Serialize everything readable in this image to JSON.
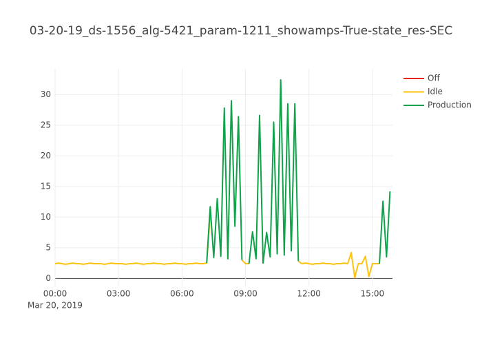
{
  "chart_data": {
    "type": "line",
    "title": "03-20-19_ds-1556_alg-5421_param-1211_showamps-True-state_res-SEC",
    "x": [
      "2019-03-20 00:00",
      "2019-03-20 00:10",
      "2019-03-20 00:20",
      "2019-03-20 00:30",
      "2019-03-20 00:40",
      "2019-03-20 00:50",
      "2019-03-20 01:00",
      "2019-03-20 01:10",
      "2019-03-20 01:20",
      "2019-03-20 01:30",
      "2019-03-20 01:40",
      "2019-03-20 01:50",
      "2019-03-20 02:00",
      "2019-03-20 02:10",
      "2019-03-20 02:20",
      "2019-03-20 02:30",
      "2019-03-20 02:40",
      "2019-03-20 02:50",
      "2019-03-20 03:00",
      "2019-03-20 03:10",
      "2019-03-20 03:20",
      "2019-03-20 03:30",
      "2019-03-20 03:40",
      "2019-03-20 03:50",
      "2019-03-20 04:00",
      "2019-03-20 04:10",
      "2019-03-20 04:20",
      "2019-03-20 04:30",
      "2019-03-20 04:40",
      "2019-03-20 04:50",
      "2019-03-20 05:00",
      "2019-03-20 05:10",
      "2019-03-20 05:20",
      "2019-03-20 05:30",
      "2019-03-20 05:40",
      "2019-03-20 05:50",
      "2019-03-20 06:00",
      "2019-03-20 06:10",
      "2019-03-20 06:20",
      "2019-03-20 06:30",
      "2019-03-20 06:40",
      "2019-03-20 06:50",
      "2019-03-20 07:00",
      "2019-03-20 07:10",
      "2019-03-20 07:20",
      "2019-03-20 07:30",
      "2019-03-20 07:40",
      "2019-03-20 07:50",
      "2019-03-20 08:00",
      "2019-03-20 08:10",
      "2019-03-20 08:20",
      "2019-03-20 08:30",
      "2019-03-20 08:40",
      "2019-03-20 08:50",
      "2019-03-20 09:00",
      "2019-03-20 09:10",
      "2019-03-20 09:20",
      "2019-03-20 09:30",
      "2019-03-20 09:40",
      "2019-03-20 09:50",
      "2019-03-20 10:00",
      "2019-03-20 10:10",
      "2019-03-20 10:20",
      "2019-03-20 10:30",
      "2019-03-20 10:40",
      "2019-03-20 10:50",
      "2019-03-20 11:00",
      "2019-03-20 11:10",
      "2019-03-20 11:20",
      "2019-03-20 11:30",
      "2019-03-20 11:40",
      "2019-03-20 11:50",
      "2019-03-20 12:00",
      "2019-03-20 12:10",
      "2019-03-20 12:20",
      "2019-03-20 12:30",
      "2019-03-20 12:40",
      "2019-03-20 12:50",
      "2019-03-20 13:00",
      "2019-03-20 13:10",
      "2019-03-20 13:20",
      "2019-03-20 13:30",
      "2019-03-20 13:40",
      "2019-03-20 13:50",
      "2019-03-20 14:00",
      "2019-03-20 14:10",
      "2019-03-20 14:20",
      "2019-03-20 14:30",
      "2019-03-20 14:40",
      "2019-03-20 14:50",
      "2019-03-20 15:00",
      "2019-03-20 15:10",
      "2019-03-20 15:20",
      "2019-03-20 15:30",
      "2019-03-20 15:40",
      "2019-03-20 15:50"
    ],
    "series": [
      {
        "name": "Off",
        "color": "#e8241a",
        "values": [
          null,
          null,
          null,
          null,
          null,
          null,
          null,
          null,
          null,
          null,
          null,
          null,
          null,
          null,
          null,
          null,
          null,
          null,
          null,
          null,
          null,
          null,
          null,
          null,
          null,
          null,
          null,
          null,
          null,
          null,
          null,
          null,
          null,
          null,
          null,
          null,
          null,
          null,
          null,
          null,
          null,
          null,
          null,
          null,
          null,
          null,
          null,
          null,
          null,
          null,
          null,
          null,
          null,
          null,
          null,
          null,
          null,
          null,
          null,
          null,
          null,
          null,
          null,
          null,
          null,
          null,
          null,
          null,
          null,
          null,
          null,
          null,
          null,
          null,
          null,
          null,
          null,
          null,
          null,
          null,
          null,
          null,
          null,
          null,
          null,
          null,
          null,
          null,
          null,
          null,
          null,
          null,
          null,
          null,
          null,
          null
        ]
      },
      {
        "name": "Idle",
        "color": "#ffc20e",
        "values": [
          2.4,
          2.5,
          2.4,
          2.3,
          2.4,
          2.5,
          2.4,
          2.4,
          2.3,
          2.4,
          2.5,
          2.4,
          2.4,
          2.4,
          2.3,
          2.4,
          2.5,
          2.4,
          2.4,
          2.4,
          2.3,
          2.4,
          2.4,
          2.5,
          2.4,
          2.3,
          2.4,
          2.4,
          2.5,
          2.4,
          2.4,
          2.3,
          2.4,
          2.4,
          2.5,
          2.4,
          2.4,
          2.3,
          2.4,
          2.4,
          2.5,
          2.4,
          2.4,
          2.5,
          10.5,
          null,
          null,
          null,
          null,
          null,
          null,
          null,
          null,
          3.0,
          2.4,
          2.4,
          null,
          null,
          null,
          null,
          null,
          null,
          null,
          null,
          null,
          null,
          null,
          null,
          null,
          2.8,
          2.4,
          2.5,
          2.4,
          2.3,
          2.4,
          2.4,
          2.5,
          2.4,
          2.4,
          2.3,
          2.4,
          2.4,
          2.5,
          2.4,
          4.2,
          0.1,
          2.4,
          2.4,
          3.6,
          0.3,
          2.4,
          2.4,
          2.4,
          null,
          null,
          null
        ]
      },
      {
        "name": "Production",
        "color": "#0fa24a",
        "values": [
          null,
          null,
          null,
          null,
          null,
          null,
          null,
          null,
          null,
          null,
          null,
          null,
          null,
          null,
          null,
          null,
          null,
          null,
          null,
          null,
          null,
          null,
          null,
          null,
          null,
          null,
          null,
          null,
          null,
          null,
          null,
          null,
          null,
          null,
          null,
          null,
          null,
          null,
          null,
          null,
          null,
          null,
          null,
          2.5,
          11.7,
          3.4,
          13.0,
          3.6,
          27.8,
          3.2,
          29.0,
          8.5,
          26.4,
          3.0,
          null,
          2.4,
          7.6,
          3.2,
          26.6,
          2.5,
          7.5,
          3.5,
          25.5,
          4.0,
          32.4,
          3.8,
          28.5,
          4.5,
          28.5,
          2.8,
          null,
          null,
          null,
          null,
          null,
          null,
          null,
          null,
          null,
          null,
          null,
          null,
          null,
          null,
          null,
          null,
          null,
          null,
          null,
          null,
          null,
          null,
          2.4,
          12.6,
          3.5,
          14.2
        ]
      }
    ],
    "xlim": [
      "2019-03-20 00:00",
      "2019-03-20 15:57"
    ],
    "xticks": [
      {
        "value": "2019-03-20 00:00",
        "label": "00:00"
      },
      {
        "value": "2019-03-20 03:00",
        "label": "03:00"
      },
      {
        "value": "2019-03-20 06:00",
        "label": "06:00"
      },
      {
        "value": "2019-03-20 09:00",
        "label": "09:00"
      },
      {
        "value": "2019-03-20 12:00",
        "label": "12:00"
      },
      {
        "value": "2019-03-20 15:00",
        "label": "15:00"
      }
    ],
    "x_date_label": "Mar 20, 2019",
    "ylim": [
      -1.2,
      34.2
    ],
    "yticks": [
      0,
      5,
      10,
      15,
      20,
      25,
      30
    ],
    "grid": true,
    "legend": "top-right"
  }
}
